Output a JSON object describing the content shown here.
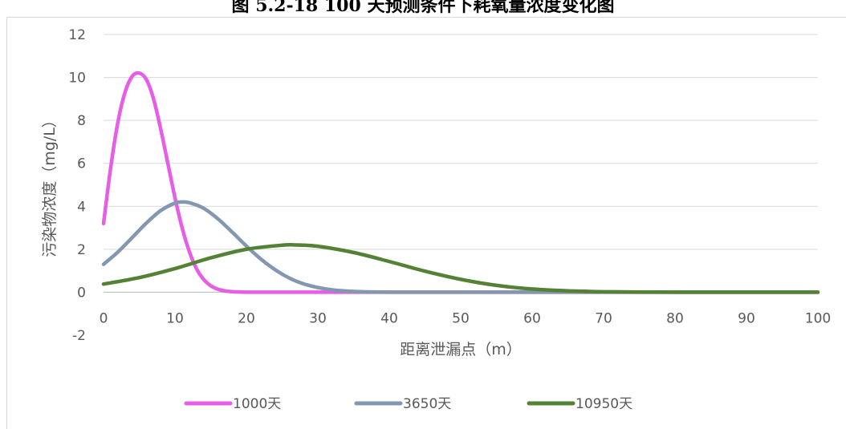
{
  "page": {
    "title": "图 5.2-18 100 天预测条件下耗氧量浓度变化图"
  },
  "chart_data": {
    "type": "line",
    "xlabel": "距离泄漏点（m）",
    "ylabel": "污染物浓度（mg/L）",
    "xlim": [
      0,
      100
    ],
    "ylim": [
      -2,
      12
    ],
    "xticks": [
      0,
      10,
      20,
      30,
      40,
      50,
      60,
      70,
      80,
      90,
      100
    ],
    "yticks": [
      -2,
      0,
      2,
      4,
      6,
      8,
      10,
      12
    ],
    "grid": true,
    "legend_position": "bottom",
    "series": [
      {
        "name": "1000天",
        "color": "#e75ee6",
        "x": [
          0,
          1,
          2,
          3,
          4,
          5,
          6,
          7,
          8,
          9,
          10,
          11,
          12,
          13,
          14,
          15,
          16,
          17,
          18,
          19,
          20,
          22,
          25,
          30,
          40,
          60,
          100
        ],
        "y": [
          3.2,
          5.8,
          7.9,
          9.3,
          10.05,
          10.2,
          9.9,
          9.0,
          7.6,
          6.0,
          4.4,
          3.0,
          1.9,
          1.1,
          0.6,
          0.3,
          0.14,
          0.06,
          0.025,
          0.01,
          0.004,
          0.0005,
          0,
          0,
          0,
          0,
          0
        ]
      },
      {
        "name": "3650天",
        "color": "#8497b0",
        "x": [
          0,
          2,
          4,
          6,
          8,
          10,
          11,
          12,
          14,
          16,
          18,
          20,
          22,
          24,
          26,
          28,
          30,
          32,
          34,
          36,
          38,
          40,
          45,
          50,
          60,
          100
        ],
        "y": [
          1.3,
          1.87,
          2.54,
          3.22,
          3.8,
          4.15,
          4.2,
          4.17,
          3.91,
          3.42,
          2.8,
          2.15,
          1.55,
          1.05,
          0.66,
          0.39,
          0.22,
          0.11,
          0.055,
          0.025,
          0.01,
          0.004,
          0.0005,
          0,
          0,
          0
        ]
      },
      {
        "name": "10950天",
        "color": "#548235",
        "x": [
          0,
          5,
          10,
          15,
          20,
          25,
          27,
          30,
          35,
          40,
          45,
          50,
          55,
          60,
          65,
          70,
          75,
          80,
          90,
          100
        ],
        "y": [
          0.38,
          0.68,
          1.1,
          1.6,
          2.0,
          2.19,
          2.2,
          2.14,
          1.85,
          1.43,
          0.98,
          0.6,
          0.32,
          0.15,
          0.063,
          0.023,
          0.007,
          0.002,
          0.0001,
          0
        ]
      }
    ]
  }
}
